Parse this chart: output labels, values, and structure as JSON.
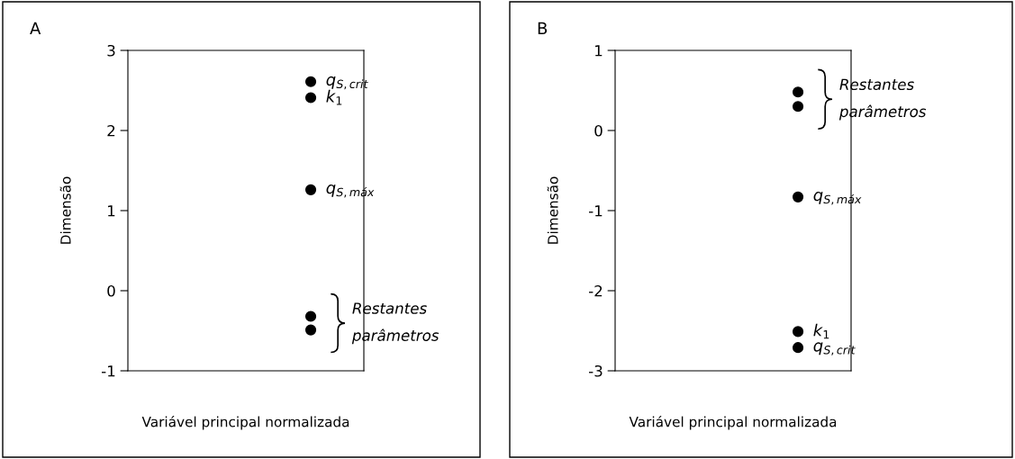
{
  "chart_data": [
    {
      "type": "scatter",
      "title": "A",
      "xlabel": "Variável principal normalizada",
      "ylabel": "Dimensão",
      "categories": [
        null
      ],
      "ylim": [
        -1,
        3
      ],
      "yticks": [
        -1,
        0,
        1,
        2,
        3
      ],
      "tick_labels": "y",
      "grid": false,
      "marker": "circle",
      "series": [
        {
          "name": "q$_{S,crit}$",
          "color": "#000000",
          "values": [
            2.61
          ]
        },
        {
          "name": "k$_{1}$",
          "color": "#000000",
          "values": [
            2.41
          ]
        },
        {
          "name": "q$_{S,máx}$",
          "color": "#000000",
          "values": [
            1.26
          ]
        },
        {
          "color": "#000000",
          "values": [
            -0.32
          ]
        },
        {
          "color": "#000000",
          "values": [
            -0.49
          ]
        }
      ],
      "annotations": [
        "Restantes\nparâmetros"
      ]
    },
    {
      "type": "scatter",
      "title": "B",
      "xlabel": "Variável principal normalizada",
      "ylabel": "Dimensão",
      "categories": [
        null
      ],
      "ylim": [
        -3,
        1
      ],
      "yticks": [
        -3,
        -2,
        -1,
        0,
        1
      ],
      "tick_labels": "y",
      "grid": false,
      "marker": "circle",
      "series": [
        {
          "color": "#000000",
          "values": [
            0.48
          ]
        },
        {
          "color": "#000000",
          "values": [
            0.3
          ]
        },
        {
          "name": "q$_{S,máx}$",
          "color": "#000000",
          "values": [
            -0.83
          ]
        },
        {
          "name": "k$_{1}$",
          "color": "#000000",
          "values": [
            -2.51
          ]
        },
        {
          "name": "q$_{S,crit}$",
          "color": "#000000",
          "values": [
            -2.71
          ]
        }
      ],
      "annotations": [
        "Restantes\nparâmetros"
      ]
    }
  ]
}
